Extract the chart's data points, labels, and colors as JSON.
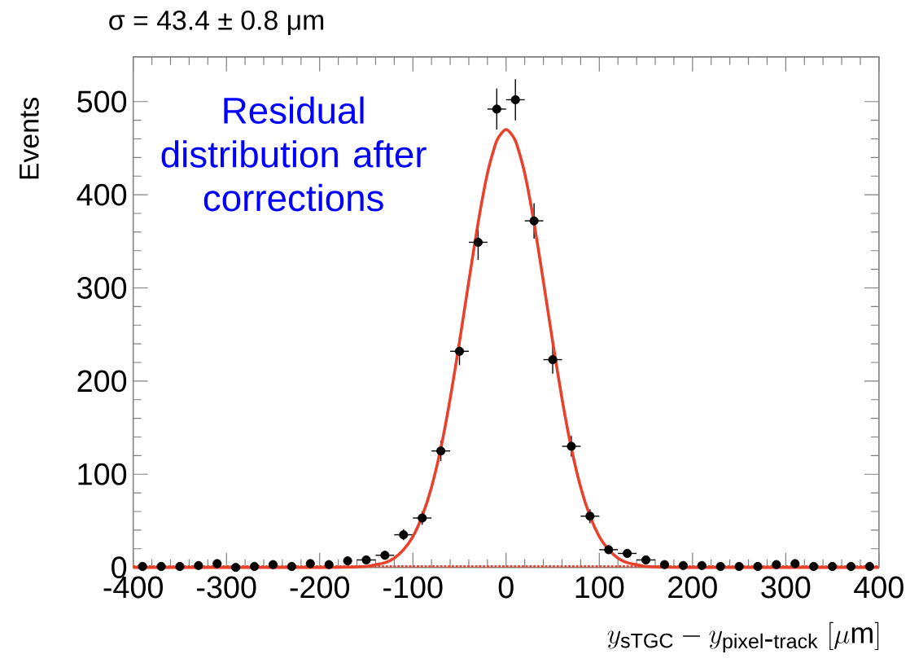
{
  "chart_data": {
    "type": "scatter",
    "title": "σ = 43.4 ± 0.8 μm",
    "ylabel": "Events",
    "xlabel": "y_{\\mathrm{sTGC}} - y_{\\mathrm{pixel\\mbox{-}track}}\\ [\\mu\\mathrm{m}]",
    "annotations": [
      "Residual distribution after corrections"
    ],
    "xlim": [
      -400,
      400
    ],
    "xticks": [
      -400,
      -300,
      -200,
      -100,
      0,
      100,
      200,
      300,
      400
    ],
    "ylim": [
      0,
      548
    ],
    "yticks": [
      0,
      100,
      200,
      300,
      400,
      500
    ],
    "series": [
      {
        "marker": "circle",
        "color": "#000000",
        "x": [
          -390,
          -370,
          -350,
          -330,
          -310,
          -290,
          -270,
          -250,
          -230,
          -210,
          -190,
          -170,
          -150,
          -130,
          -110,
          -90,
          -70,
          -50,
          -30,
          -10,
          10,
          30,
          50,
          70,
          90,
          110,
          130,
          150,
          170,
          190,
          210,
          230,
          250,
          270,
          290,
          310,
          330,
          350,
          370,
          390
        ],
        "values": [
          1,
          1,
          1,
          2,
          4,
          0,
          1,
          3,
          1,
          4,
          3,
          7,
          8,
          13,
          35,
          53,
          125,
          232,
          349,
          492,
          502,
          372,
          223,
          130,
          55,
          19,
          15,
          8,
          3,
          2,
          2,
          1,
          1,
          1,
          3,
          4,
          1,
          1,
          1,
          1
        ],
        "errors": [
          null,
          null,
          null,
          null,
          null,
          null,
          null,
          null,
          null,
          null,
          null,
          null,
          null,
          3.6,
          5.9,
          7.3,
          11,
          15,
          19,
          22,
          22,
          19,
          15,
          11,
          7.4,
          4.4,
          3.9,
          null,
          null,
          null,
          null,
          null,
          null,
          null,
          null,
          null,
          null,
          null,
          null,
          null
        ],
        "xerrors": [
          null,
          null,
          null,
          null,
          null,
          null,
          null,
          null,
          null,
          null,
          null,
          null,
          10,
          10,
          10,
          10,
          10,
          10,
          10,
          10,
          10,
          10,
          10,
          10,
          10,
          10,
          10,
          10,
          null,
          null,
          null,
          null,
          null,
          null,
          null,
          null,
          null,
          null,
          null,
          null
        ]
      },
      {
        "type": "line",
        "color": "#e8412c",
        "x": [
          -400,
          -200,
          -150,
          -140,
          -130,
          -120,
          -110,
          -100,
          -90,
          -80,
          -70,
          -60,
          -50,
          -40,
          -30,
          -20,
          -10,
          0,
          10,
          20,
          30,
          40,
          50,
          60,
          70,
          80,
          90,
          100,
          110,
          120,
          130,
          140,
          150,
          200,
          400
        ],
        "values": [
          0,
          0,
          1,
          3,
          5,
          10,
          19,
          33,
          55,
          86,
          128,
          181,
          242,
          307,
          370,
          423,
          458,
          470,
          458,
          423,
          370,
          307,
          242,
          181,
          128,
          86,
          55,
          33,
          19,
          10,
          5,
          3,
          1,
          0,
          0
        ]
      }
    ],
    "ref_lines": [
      {
        "axis": "y",
        "value": 1,
        "color": "#e8412c",
        "line_style": "dotted"
      }
    ]
  }
}
